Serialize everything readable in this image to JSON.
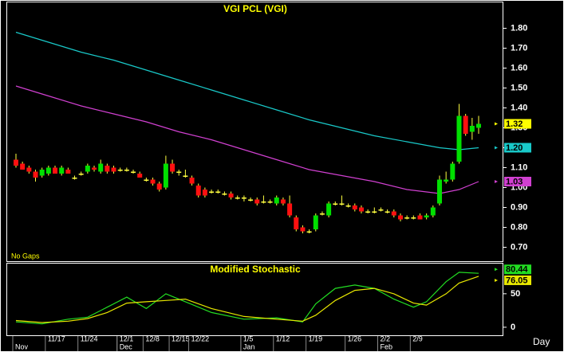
{
  "chart_data": [
    {
      "type": "candlestick",
      "title": "VGI  PCL  (VGI)",
      "annotation": "No Gaps",
      "xlabel": "Day",
      "ylim": [
        0.63,
        1.93
      ],
      "yticks": [
        {
          "value": 0.7,
          "label": "0.70"
        },
        {
          "value": 0.8,
          "label": "0.80"
        },
        {
          "value": 0.9,
          "label": "0.90"
        },
        {
          "value": 1.0,
          "label": "1.00"
        },
        {
          "value": 1.1,
          "label": "1.10"
        },
        {
          "value": 1.2,
          "label": "1.20"
        },
        {
          "value": 1.3,
          "label": "1.30"
        },
        {
          "value": 1.4,
          "label": "1.40"
        },
        {
          "value": 1.5,
          "label": "1.50"
        },
        {
          "value": 1.6,
          "label": "1.60"
        },
        {
          "value": 1.7,
          "label": "1.70"
        },
        {
          "value": 1.8,
          "label": "1.80"
        }
      ],
      "xticks": [
        {
          "value": 5,
          "label": "11/17"
        },
        {
          "value": 10,
          "label": "11/24"
        },
        {
          "value": 16,
          "label": "12/1"
        },
        {
          "value": 20,
          "label": "12/8"
        },
        {
          "value": 24,
          "label": "12/15"
        },
        {
          "value": 27,
          "label": "12/22"
        },
        {
          "value": 35,
          "label": "1/5"
        },
        {
          "value": 40,
          "label": "1/12"
        },
        {
          "value": 45,
          "label": "1/19"
        },
        {
          "value": 51,
          "label": "1/26"
        },
        {
          "value": 56,
          "label": "2/2"
        },
        {
          "value": 61,
          "label": "2/9"
        }
      ],
      "month_ticks": [
        {
          "value": 0,
          "label": "Nov"
        },
        {
          "value": 16,
          "label": "Dec"
        },
        {
          "value": 35,
          "label": "Jan"
        },
        {
          "value": 56,
          "label": "Feb"
        }
      ],
      "up_color": "#00e000",
      "down_color": "#ff1010",
      "wick_color": "#ffff40",
      "last_color": "#ffff00",
      "candles": {
        "open": [
          1.14,
          1.12,
          1.1,
          1.08,
          1.06,
          1.07,
          1.1,
          1.07,
          1.09,
          1.05,
          1.07,
          1.08,
          1.1,
          1.08,
          1.11,
          1.1,
          1.09,
          1.09,
          1.08,
          1.07,
          1.04,
          1.04,
          1.02,
          1.0,
          1.12,
          1.08,
          1.06,
          1.05,
          1.01,
          0.99,
          0.98,
          0.98,
          0.97,
          0.97,
          0.95,
          0.95,
          0.94,
          0.94,
          0.93,
          0.93,
          0.92,
          0.94,
          0.92,
          0.85,
          0.8,
          0.78,
          0.79,
          0.87,
          0.86,
          0.92,
          0.92,
          0.91,
          0.91,
          0.9,
          0.88,
          0.88,
          0.89,
          0.88,
          0.88,
          0.86,
          0.85,
          0.85,
          0.86,
          0.85,
          0.86,
          0.92,
          1.03,
          1.04,
          1.13,
          1.36,
          1.28,
          1.3
        ],
        "high": [
          1.17,
          1.13,
          1.11,
          1.09,
          1.1,
          1.11,
          1.11,
          1.11,
          1.1,
          1.06,
          1.08,
          1.12,
          1.11,
          1.14,
          1.12,
          1.11,
          1.1,
          1.1,
          1.09,
          1.08,
          1.05,
          1.05,
          1.03,
          1.16,
          1.14,
          1.09,
          1.09,
          1.06,
          1.02,
          1.0,
          0.99,
          0.99,
          0.98,
          0.98,
          0.96,
          0.96,
          0.95,
          0.95,
          0.96,
          0.94,
          0.96,
          0.95,
          0.96,
          0.86,
          0.81,
          0.79,
          0.87,
          0.88,
          0.93,
          0.93,
          0.96,
          0.92,
          0.92,
          0.91,
          0.89,
          0.9,
          0.9,
          0.89,
          0.89,
          0.87,
          0.86,
          0.86,
          0.87,
          0.87,
          0.91,
          1.06,
          1.08,
          1.13,
          1.42,
          1.37,
          1.35,
          1.36
        ],
        "low": [
          1.1,
          1.09,
          1.07,
          1.03,
          1.05,
          1.06,
          1.07,
          1.06,
          1.07,
          1.04,
          1.06,
          1.07,
          1.08,
          1.07,
          1.07,
          1.07,
          1.08,
          1.08,
          1.07,
          1.05,
          1.03,
          1.01,
          0.98,
          0.99,
          1.07,
          1.06,
          1.05,
          1.01,
          0.95,
          0.95,
          0.97,
          0.97,
          0.96,
          0.94,
          0.94,
          0.93,
          0.93,
          0.91,
          0.92,
          0.92,
          0.91,
          0.91,
          0.85,
          0.78,
          0.77,
          0.77,
          0.78,
          0.86,
          0.85,
          0.91,
          0.91,
          0.9,
          0.88,
          0.87,
          0.87,
          0.87,
          0.88,
          0.87,
          0.85,
          0.83,
          0.84,
          0.84,
          0.84,
          0.84,
          0.85,
          0.91,
          1.02,
          1.03,
          1.12,
          1.26,
          1.24,
          1.27
        ],
        "close": [
          1.11,
          1.09,
          1.08,
          1.05,
          1.09,
          1.1,
          1.07,
          1.1,
          1.07,
          1.05,
          1.07,
          1.11,
          1.09,
          1.12,
          1.08,
          1.08,
          1.09,
          1.09,
          1.08,
          1.05,
          1.04,
          1.02,
          0.99,
          1.12,
          1.08,
          1.08,
          1.06,
          1.02,
          0.96,
          0.96,
          0.98,
          0.98,
          0.97,
          0.95,
          0.95,
          0.95,
          0.94,
          0.92,
          0.93,
          0.93,
          0.95,
          0.92,
          0.86,
          0.79,
          0.78,
          0.78,
          0.86,
          0.87,
          0.92,
          0.92,
          0.92,
          0.91,
          0.89,
          0.88,
          0.88,
          0.88,
          0.89,
          0.88,
          0.86,
          0.84,
          0.85,
          0.85,
          0.84,
          0.86,
          0.9,
          1.04,
          1.04,
          1.12,
          1.36,
          1.27,
          1.31,
          1.32
        ]
      },
      "series": [
        {
          "color": "#19c9c9",
          "x": [
            0,
            5,
            10,
            15,
            20,
            25,
            30,
            35,
            40,
            45,
            50,
            55,
            60,
            65,
            68,
            71
          ],
          "values": [
            1.78,
            1.73,
            1.68,
            1.64,
            1.59,
            1.54,
            1.49,
            1.44,
            1.39,
            1.34,
            1.3,
            1.26,
            1.23,
            1.2,
            1.19,
            1.2
          ],
          "value_labels": [
            null,
            null,
            null,
            null,
            null,
            null,
            null,
            null,
            null,
            null,
            null,
            null,
            null,
            null,
            null,
            "1.20"
          ]
        },
        {
          "color": "#d040d0",
          "x": [
            0,
            5,
            10,
            15,
            20,
            25,
            30,
            35,
            40,
            45,
            50,
            55,
            60,
            65,
            68,
            71
          ],
          "values": [
            1.51,
            1.46,
            1.41,
            1.37,
            1.33,
            1.28,
            1.24,
            1.19,
            1.14,
            1.09,
            1.06,
            1.03,
            0.99,
            0.97,
            0.99,
            1.03
          ]
        }
      ]
    },
    {
      "type": "line",
      "title": "Modified  Stochastic",
      "ylim": [
        -12,
        95
      ],
      "yticks": [
        0,
        50
      ],
      "series": [
        {
          "color": "#22dd22",
          "x": [
            0,
            4,
            8,
            11,
            14,
            17,
            20,
            23,
            26,
            30,
            35,
            40,
            44,
            46,
            49,
            52,
            55,
            58,
            61,
            63,
            66,
            68,
            71
          ],
          "values": [
            8,
            5,
            12,
            15,
            30,
            45,
            28,
            50,
            38,
            22,
            12,
            14,
            8,
            35,
            58,
            63,
            58,
            42,
            30,
            38,
            68,
            82,
            80.44
          ]
        },
        {
          "color": "#e8e800",
          "x": [
            0,
            4,
            8,
            11,
            14,
            17,
            20,
            23,
            26,
            30,
            35,
            40,
            44,
            46,
            49,
            52,
            55,
            58,
            61,
            63,
            66,
            68,
            71
          ],
          "values": [
            10,
            7,
            9,
            13,
            22,
            36,
            38,
            40,
            42,
            28,
            16,
            12,
            9,
            18,
            40,
            55,
            58,
            50,
            36,
            33,
            50,
            66,
            76.05
          ]
        }
      ]
    }
  ]
}
